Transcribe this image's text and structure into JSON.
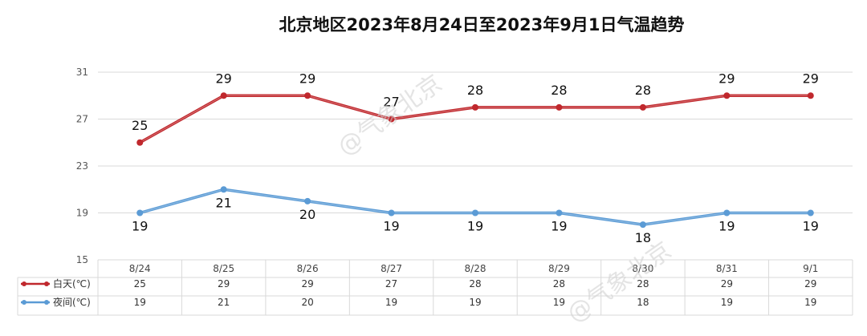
{
  "watermark": "@气象北京",
  "chart_data": {
    "type": "line",
    "title": "北京地区2023年8月24日至2023年9月1日气温趋势",
    "categories": [
      "8/24",
      "8/25",
      "8/26",
      "8/27",
      "8/28",
      "8/29",
      "8/30",
      "8/31",
      "9/1"
    ],
    "ylim": [
      15,
      31
    ],
    "yticks": [
      15,
      19,
      23,
      27,
      31
    ],
    "grid": true,
    "legend": "data-table-left",
    "series": [
      {
        "name": "白天(℃)",
        "color": "#c0282d",
        "values": [
          25,
          29,
          29,
          27,
          28,
          28,
          28,
          29,
          29
        ]
      },
      {
        "name": "夜间(℃)",
        "color": "#5b9bd5",
        "values": [
          19,
          21,
          20,
          19,
          19,
          19,
          18,
          19,
          19
        ]
      }
    ]
  }
}
